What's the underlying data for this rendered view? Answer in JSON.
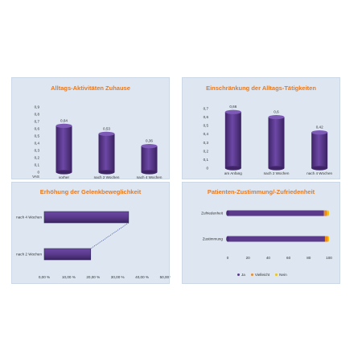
{
  "colors": {
    "bar_purple": "#5b3a8c",
    "bar_orange": "#f08a1c",
    "bar_yellow": "#f5c400",
    "title_orange": "#e8791f",
    "panel_bg": "#dde6f1"
  },
  "chart_data": [
    {
      "type": "bar",
      "title": "Alltags-Aktivitäten Zuhause",
      "ylabel": "VAS",
      "categories": [
        "vorher",
        "nach 2 Wochen",
        "nach 4 Wochen"
      ],
      "values": [
        0.64,
        0.53,
        0.36
      ],
      "value_labels": [
        "0,64",
        "0,53",
        "0,36"
      ],
      "ylim": [
        0,
        0.9
      ],
      "yticks": [
        "0,9",
        "0,8",
        "0,7",
        "0,6",
        "0,5",
        "0,4",
        "0,3",
        "0,2",
        "0,1",
        "0"
      ]
    },
    {
      "type": "bar",
      "title": "Einschränkung der Alltags-Tätigkeiten",
      "categories": [
        "am Anfang",
        "nach 2 Wochen",
        "nach 4 Wochen"
      ],
      "values": [
        0.66,
        0.6,
        0.42
      ],
      "value_labels": [
        "0,66",
        "0,6",
        "0,42"
      ],
      "ylim": [
        0,
        0.7
      ],
      "yticks": [
        "0,7",
        "0,6",
        "0,5",
        "0,4",
        "0,3",
        "0,2",
        "0,1",
        "0"
      ]
    },
    {
      "type": "bar",
      "orientation": "horizontal",
      "title": "Erhöhung der Gelenkbeweglichkeit",
      "categories": [
        "nach 4 Wochen",
        "nach 2 Wochen"
      ],
      "values": [
        34.5,
        19.0
      ],
      "xlim": [
        0,
        50
      ],
      "xticks": [
        "0,00 %",
        "10,00 %",
        "20,00 %",
        "30,00 %",
        "40,00 %",
        "50,00 %"
      ]
    },
    {
      "type": "bar",
      "orientation": "horizontal",
      "stacked": true,
      "title": "Patienten-Zustimmung/-Zufriedenheit",
      "categories": [
        "Zufriedenheit",
        "Zustimmung"
      ],
      "series": [
        {
          "name": "Ja",
          "values": [
            95,
            96
          ]
        },
        {
          "name": "Vielleicht",
          "values": [
            3,
            3
          ]
        },
        {
          "name": "Nein",
          "values": [
            2,
            1
          ]
        }
      ],
      "xlim": [
        0,
        100
      ],
      "xticks": [
        "0",
        "20",
        "40",
        "60",
        "80",
        "100"
      ]
    }
  ]
}
